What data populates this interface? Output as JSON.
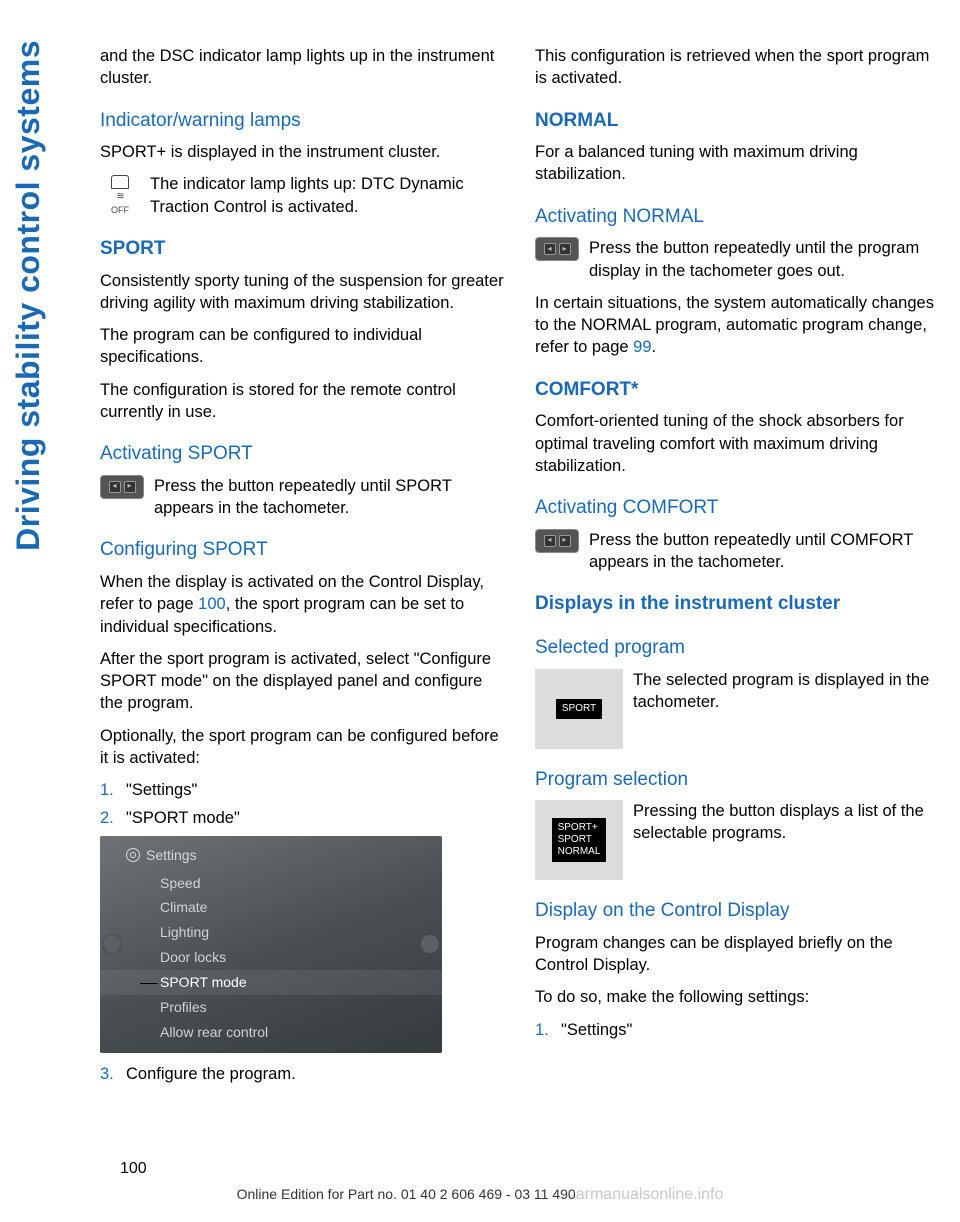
{
  "colors": {
    "accent": "#1c69b3",
    "text": "#000000",
    "bg": "#ffffff"
  },
  "side_tab": "Driving stability control systems",
  "page_num": "100",
  "footer": "Online Edition for Part no. 01 40 2 606 469 - 03 11 490",
  "watermark": "armanualsonline.info",
  "left": {
    "p1": "and the DSC indicator lamp lights up in the instrument cluster.",
    "h_indicator": "Indicator/warning lamps",
    "p_indicator": "SPORT+ is displayed in the instrument cluster.",
    "dtc_text": "The indicator lamp lights up: DTC Dynamic Traction Control is activated.",
    "h_sport": "SPORT",
    "p_sport1": "Consistently sporty tuning of the suspension for greater driving agility with maximum driving stabilization.",
    "p_sport2": "The program can be configured to individual specifications.",
    "p_sport3": "The configuration is stored for the remote control currently in use.",
    "h_act_sport": "Activating SPORT",
    "act_sport_text": "Press the button repeatedly until SPORT appears in the tachometer.",
    "h_conf_sport": "Configuring SPORT",
    "conf_p1a": "When the display is activated on the Control Display, refer to page ",
    "conf_p1_xref": "100",
    "conf_p1b": ", the sport program can be set to individual specifications.",
    "conf_p2": "After the sport program is activated, select \"Configure SPORT mode\" on the displayed panel and configure the program.",
    "conf_p3": "Optionally, the sport program can be configured before it is activated:",
    "li1": "\"Settings\"",
    "li2": "\"SPORT mode\"",
    "menu": {
      "title": "Settings",
      "items": [
        "Speed",
        "Climate",
        "Lighting",
        "Door locks",
        "SPORT mode",
        "Profiles",
        "Allow rear control"
      ],
      "selected_index": 4
    },
    "li3": "Configure the program."
  },
  "right": {
    "p1": "This configuration is retrieved when the sport program is activated.",
    "h_normal": "NORMAL",
    "p_normal": "For a balanced tuning with maximum driving stabilization.",
    "h_act_normal": "Activating NORMAL",
    "act_normal_text": "Press the button repeatedly until the program display in the tachometer goes out.",
    "p_normal2a": "In certain situations, the system automatically changes to the NORMAL program, automatic program change, refer to page ",
    "p_normal2_xref": "99",
    "p_normal2b": ".",
    "h_comfort": "COMFORT*",
    "p_comfort": "Comfort-oriented tuning of the shock absorbers for optimal traveling comfort with maximum driving stabilization.",
    "h_act_comfort": "Activating COMFORT",
    "act_comfort_text": "Press the button repeatedly until COMFORT appears in the tachometer.",
    "h_displays": "Displays in the instrument cluster",
    "h_selprog": "Selected program",
    "selprog_badge": "SPORT",
    "selprog_text": "The selected program is displayed in the tachometer.",
    "h_progsel": "Program selection",
    "progsel_badge": "SPORT+\nSPORT\nNORMAL",
    "progsel_text": "Pressing the button displays a list of the selectable programs.",
    "h_dispctrl": "Display on the Control Display",
    "p_dispctrl1": "Program changes can be displayed briefly on the Control Display.",
    "p_dispctrl2": "To do so, make the following settings:",
    "li1": "\"Settings\""
  }
}
